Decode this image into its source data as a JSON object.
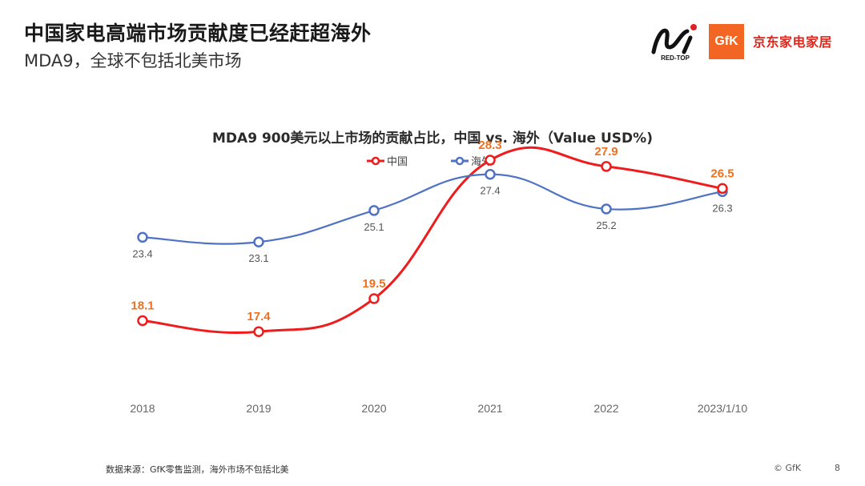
{
  "header": {
    "title": "中国家电高端市场贡献度已经赶超海外",
    "subtitle": "MDA9，全球不包括北美市场"
  },
  "logos": {
    "redtop_text": "RED-TOP",
    "gfk_text": "GfK",
    "jd_text": "京东家电家居"
  },
  "chart_data": {
    "type": "line",
    "title": "MDA9 900美元以上市场的贡献占比，中国 vs. 海外（Value USD%)",
    "categories": [
      "2018",
      "2019",
      "2020",
      "2021",
      "2022",
      "2023/1/10"
    ],
    "series": [
      {
        "name": "中国",
        "color": "#ee1c1c",
        "label_color": "#f07020",
        "values": [
          18.1,
          17.4,
          19.5,
          28.3,
          27.9,
          26.5
        ]
      },
      {
        "name": "海外",
        "color": "#4f72c4",
        "label_color": "#555555",
        "values": [
          23.4,
          23.1,
          25.1,
          27.4,
          25.2,
          26.3
        ]
      }
    ],
    "ylim": [
      11,
      31
    ],
    "grid": false,
    "legend": "top-center",
    "smooth": true
  },
  "footer": {
    "source": "数据来源：GfK零售监测，海外市场不包括北美",
    "copyright": "© GfK",
    "page": "8"
  }
}
